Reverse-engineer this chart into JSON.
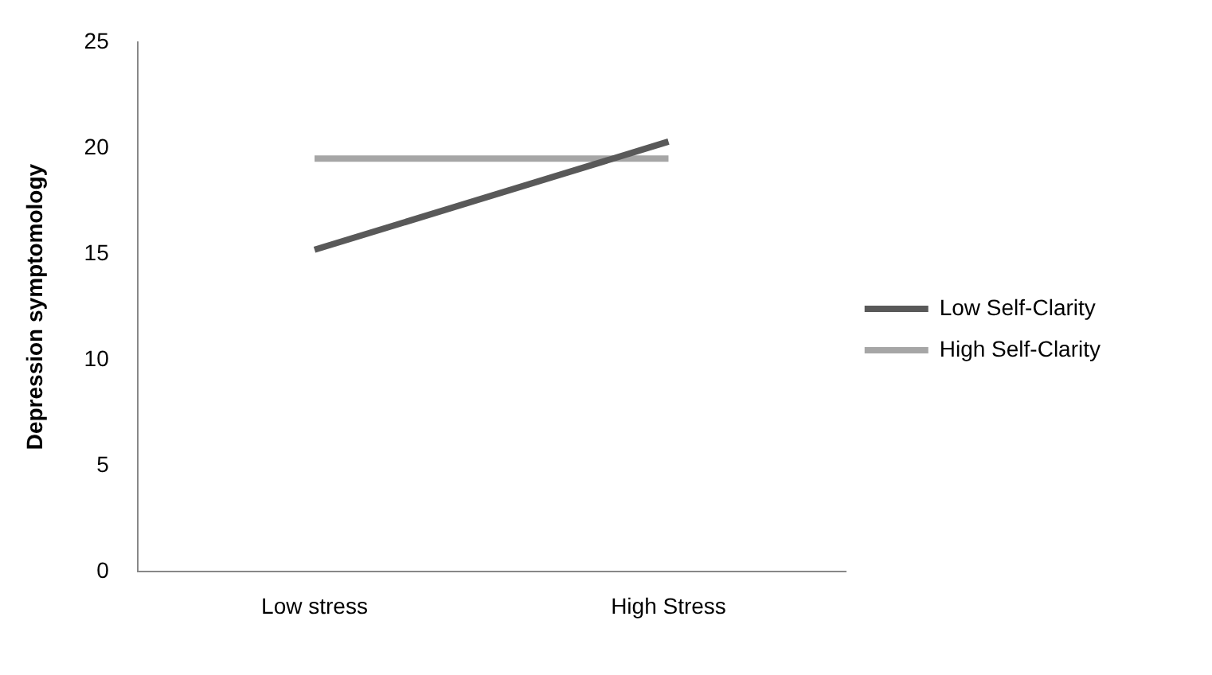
{
  "chart_data": {
    "type": "line",
    "ylabel": "Depression symptomology",
    "categories": [
      "Low stress",
      "High Stress"
    ],
    "series": [
      {
        "name": "Low Self-Clarity",
        "color": "#595959",
        "values": [
          15.2,
          20.3
        ]
      },
      {
        "name": "High Self-Clarity",
        "color": "#a6a6a6",
        "values": [
          19.5,
          19.5
        ]
      }
    ],
    "ylim": [
      0,
      25
    ],
    "yticks": [
      0,
      5,
      10,
      15,
      20,
      25
    ],
    "grid": false,
    "legend": "right",
    "marker": "none"
  }
}
